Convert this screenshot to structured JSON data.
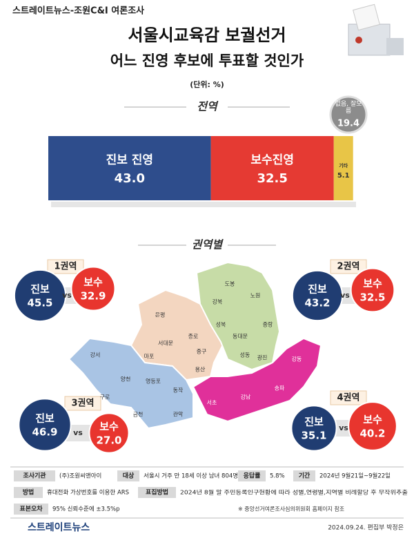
{
  "header": {
    "source": "스트레이트뉴스-조원C&I 여론조사",
    "title": "서울시교육감 보궐선거",
    "subtitle": "어느 진영 후보에 투표할 것인가",
    "unit": "(단위: %)"
  },
  "chart_data": [
    {
      "type": "stacked-bar",
      "title": "전역",
      "categories": [
        "진보 진영",
        "보수진영",
        "기타",
        "없음, 잘모름"
      ],
      "values": [
        43.0,
        32.5,
        5.1,
        19.4
      ],
      "value_labels": [
        "43.0",
        "32.5",
        "5.1",
        "19.4"
      ],
      "colors": [
        "#2e4d8c",
        "#e53a33",
        "#e8c547",
        "#8c8c8c"
      ]
    },
    {
      "type": "bubble",
      "title": "권역별",
      "categories": [
        "1권역",
        "2권역",
        "3권역",
        "4권역"
      ],
      "separator": "vs",
      "series": [
        {
          "name": "진보",
          "color": "#203d72",
          "values": [
            45.5,
            43.2,
            46.9,
            35.1
          ],
          "value_labels": [
            "45.5",
            "43.2",
            "46.9",
            "35.1"
          ]
        },
        {
          "name": "보수",
          "color": "#e8352e",
          "values": [
            32.9,
            32.5,
            27.0,
            40.2
          ],
          "value_labels": [
            "32.9",
            "32.5",
            "27.0",
            "40.2"
          ]
        }
      ]
    }
  ],
  "map": {
    "districts": [
      "도봉",
      "노원",
      "강북",
      "성북",
      "중랑",
      "동대문",
      "광진",
      "성동",
      "은평",
      "종로",
      "서대문",
      "마포",
      "중구",
      "용산",
      "강서",
      "양천",
      "영등포",
      "동작",
      "구로",
      "금천",
      "관악",
      "서초",
      "강남",
      "송파",
      "강동"
    ]
  },
  "footer": {
    "fields": [
      {
        "label": "조사기관",
        "value": "(주)조원씨앤아이"
      },
      {
        "label": "대상",
        "value": "서울시 거주 만 18세 이상 남녀 804명"
      },
      {
        "label": "응답률",
        "value": "5.8%"
      },
      {
        "label": "기간",
        "value": "2024년 9월21일~9월22일"
      },
      {
        "label": "방법",
        "value": "휴대전화 가상번호를 이용한 ARS"
      },
      {
        "label": "표집방법",
        "value": "2024년 8월 말 주민등록인구현황에 따라 성별,연령별,지역별 비례할당 후 무작위추출"
      },
      {
        "label": "표본오차",
        "value": "95% 신뢰수준에 ±3.5%p"
      }
    ],
    "note": "※ 중앙선거여론조사심의위원회 홈페이지 참조",
    "logo": "스트레이트뉴스",
    "credit": "2024.09.24. 편집부 박정은"
  }
}
